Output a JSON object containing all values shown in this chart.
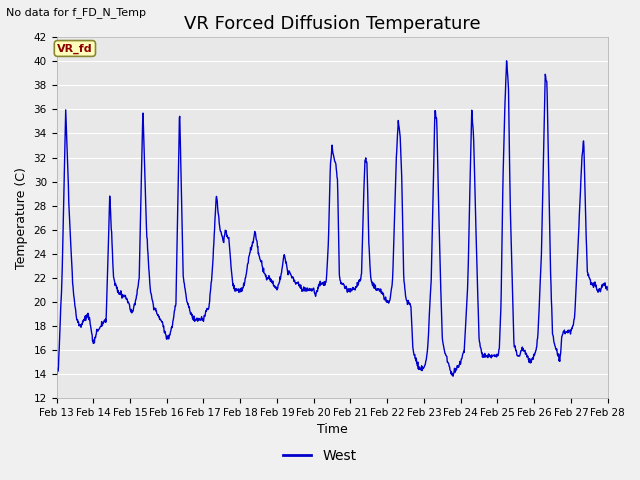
{
  "title": "VR Forced Diffusion Temperature",
  "ylabel": "Temperature (C)",
  "xlabel": "Time",
  "no_data_text": "No data for f_FD_N_Temp",
  "annotation_text": "VR_fd",
  "legend_label": "West",
  "ylim": [
    12,
    42
  ],
  "yticks": [
    12,
    14,
    16,
    18,
    20,
    22,
    24,
    26,
    28,
    30,
    32,
    34,
    36,
    38,
    40,
    42
  ],
  "line_color": "#0000cc",
  "plot_bg_color": "#e8e8e8",
  "fig_bg_color": "#f0f0f0",
  "grid_color": "#ffffff",
  "title_fontsize": 13,
  "ylabel_fontsize": 9,
  "xlabel_fontsize": 9,
  "tick_fontsize": 7.5,
  "annot_fontsize": 8,
  "nodata_fontsize": 8,
  "legend_fontsize": 10,
  "line_width": 1.0,
  "key_points": [
    [
      0.0,
      14.0
    ],
    [
      0.05,
      14.5
    ],
    [
      0.15,
      22
    ],
    [
      0.25,
      36
    ],
    [
      0.35,
      27
    ],
    [
      0.45,
      21
    ],
    [
      0.55,
      18.5
    ],
    [
      0.65,
      18
    ],
    [
      0.75,
      18.5
    ],
    [
      0.85,
      19
    ],
    [
      0.9,
      18.5
    ],
    [
      1.0,
      16.5
    ],
    [
      1.05,
      17
    ],
    [
      1.1,
      17.5
    ],
    [
      1.2,
      18
    ],
    [
      1.35,
      18.5
    ],
    [
      1.45,
      29
    ],
    [
      1.55,
      22
    ],
    [
      1.65,
      21
    ],
    [
      1.75,
      20.5
    ],
    [
      1.85,
      20.5
    ],
    [
      1.95,
      20
    ],
    [
      2.0,
      19.5
    ],
    [
      2.05,
      19
    ],
    [
      2.15,
      20
    ],
    [
      2.25,
      22
    ],
    [
      2.35,
      36
    ],
    [
      2.45,
      26
    ],
    [
      2.55,
      21
    ],
    [
      2.65,
      19.5
    ],
    [
      2.75,
      19
    ],
    [
      2.85,
      18.5
    ],
    [
      2.95,
      17.5
    ],
    [
      3.0,
      17
    ],
    [
      3.05,
      17
    ],
    [
      3.15,
      18
    ],
    [
      3.25,
      20
    ],
    [
      3.35,
      36
    ],
    [
      3.45,
      22
    ],
    [
      3.55,
      20
    ],
    [
      3.65,
      19
    ],
    [
      3.75,
      18.5
    ],
    [
      3.85,
      18.5
    ],
    [
      3.95,
      18.5
    ],
    [
      4.0,
      18.5
    ],
    [
      4.05,
      19
    ],
    [
      4.15,
      19.5
    ],
    [
      4.25,
      23
    ],
    [
      4.35,
      29
    ],
    [
      4.45,
      26
    ],
    [
      4.5,
      25.5
    ],
    [
      4.55,
      25
    ],
    [
      4.6,
      26
    ],
    [
      4.65,
      25.5
    ],
    [
      4.7,
      25
    ],
    [
      4.75,
      23
    ],
    [
      4.8,
      21.5
    ],
    [
      4.85,
      21
    ],
    [
      4.9,
      21
    ],
    [
      4.95,
      21
    ],
    [
      5.0,
      21
    ],
    [
      5.05,
      21
    ],
    [
      5.15,
      22
    ],
    [
      5.25,
      24
    ],
    [
      5.35,
      25
    ],
    [
      5.4,
      26
    ],
    [
      5.45,
      25
    ],
    [
      5.5,
      24
    ],
    [
      5.6,
      23
    ],
    [
      5.7,
      22
    ],
    [
      5.8,
      22
    ],
    [
      5.9,
      21.5
    ],
    [
      6.0,
      21
    ],
    [
      6.05,
      21.5
    ],
    [
      6.1,
      22
    ],
    [
      6.2,
      24
    ],
    [
      6.3,
      22.5
    ],
    [
      6.35,
      22.5
    ],
    [
      6.4,
      22
    ],
    [
      6.45,
      22
    ],
    [
      6.5,
      21.5
    ],
    [
      6.6,
      21.5
    ],
    [
      6.7,
      21
    ],
    [
      6.8,
      21
    ],
    [
      6.9,
      21
    ],
    [
      7.0,
      21
    ],
    [
      7.05,
      20.5
    ],
    [
      7.1,
      21
    ],
    [
      7.15,
      21.5
    ],
    [
      7.2,
      21.5
    ],
    [
      7.25,
      21.5
    ],
    [
      7.3,
      21.5
    ],
    [
      7.35,
      22
    ],
    [
      7.4,
      25
    ],
    [
      7.45,
      31
    ],
    [
      7.5,
      33
    ],
    [
      7.55,
      32
    ],
    [
      7.6,
      31.5
    ],
    [
      7.65,
      30
    ],
    [
      7.7,
      22
    ],
    [
      7.75,
      21.5
    ],
    [
      7.8,
      21.5
    ],
    [
      7.9,
      21
    ],
    [
      8.0,
      21
    ],
    [
      8.05,
      21
    ],
    [
      8.1,
      21
    ],
    [
      8.2,
      21.5
    ],
    [
      8.3,
      22
    ],
    [
      8.35,
      28
    ],
    [
      8.4,
      32
    ],
    [
      8.45,
      31.5
    ],
    [
      8.5,
      25
    ],
    [
      8.55,
      22
    ],
    [
      8.6,
      21.5
    ],
    [
      8.7,
      21
    ],
    [
      8.8,
      21
    ],
    [
      8.9,
      20.5
    ],
    [
      9.0,
      20
    ],
    [
      9.05,
      20
    ],
    [
      9.1,
      20.5
    ],
    [
      9.15,
      22
    ],
    [
      9.25,
      32
    ],
    [
      9.3,
      35
    ],
    [
      9.35,
      34
    ],
    [
      9.4,
      30
    ],
    [
      9.45,
      22
    ],
    [
      9.5,
      20.5
    ],
    [
      9.55,
      20
    ],
    [
      9.6,
      20
    ],
    [
      9.65,
      19.5
    ],
    [
      9.7,
      16
    ],
    [
      9.75,
      15.5
    ],
    [
      9.8,
      15
    ],
    [
      9.85,
      14.5
    ],
    [
      9.9,
      14.5
    ],
    [
      9.95,
      14.5
    ],
    [
      10.0,
      14.5
    ],
    [
      10.05,
      15
    ],
    [
      10.1,
      16
    ],
    [
      10.2,
      22
    ],
    [
      10.3,
      36
    ],
    [
      10.35,
      35
    ],
    [
      10.4,
      28
    ],
    [
      10.45,
      22
    ],
    [
      10.5,
      17
    ],
    [
      10.55,
      16
    ],
    [
      10.6,
      15.5
    ],
    [
      10.65,
      15
    ],
    [
      10.7,
      14.5
    ],
    [
      10.75,
      14
    ],
    [
      10.8,
      14
    ],
    [
      10.9,
      14.5
    ],
    [
      11.0,
      15
    ],
    [
      11.05,
      15.5
    ],
    [
      11.1,
      16
    ],
    [
      11.2,
      22
    ],
    [
      11.3,
      36
    ],
    [
      11.35,
      34
    ],
    [
      11.4,
      28
    ],
    [
      11.45,
      22
    ],
    [
      11.5,
      17
    ],
    [
      11.55,
      16
    ],
    [
      11.6,
      15.5
    ],
    [
      11.65,
      15.5
    ],
    [
      11.7,
      15.5
    ],
    [
      11.8,
      15.5
    ],
    [
      11.9,
      15.5
    ],
    [
      12.0,
      15.5
    ],
    [
      12.05,
      16
    ],
    [
      12.1,
      20
    ],
    [
      12.15,
      30
    ],
    [
      12.2,
      36
    ],
    [
      12.25,
      40
    ],
    [
      12.3,
      38
    ],
    [
      12.35,
      28
    ],
    [
      12.4,
      22
    ],
    [
      12.45,
      16.5
    ],
    [
      12.5,
      16
    ],
    [
      12.55,
      15.5
    ],
    [
      12.6,
      15.5
    ],
    [
      12.65,
      16
    ],
    [
      12.7,
      16
    ],
    [
      12.8,
      15.5
    ],
    [
      12.9,
      15
    ],
    [
      13.0,
      15.5
    ],
    [
      13.05,
      16
    ],
    [
      13.1,
      17
    ],
    [
      13.2,
      24
    ],
    [
      13.3,
      39
    ],
    [
      13.35,
      38
    ],
    [
      13.4,
      30
    ],
    [
      13.45,
      22
    ],
    [
      13.5,
      17.5
    ],
    [
      13.55,
      16.5
    ],
    [
      13.6,
      16
    ],
    [
      13.65,
      15.5
    ],
    [
      13.7,
      15
    ],
    [
      13.75,
      17
    ],
    [
      13.8,
      17.5
    ],
    [
      13.9,
      17.5
    ],
    [
      14.0,
      17.5
    ],
    [
      14.05,
      18
    ],
    [
      14.1,
      18.5
    ],
    [
      14.2,
      25
    ],
    [
      14.3,
      32
    ],
    [
      14.35,
      33.5
    ],
    [
      14.4,
      27
    ],
    [
      14.45,
      22.5
    ],
    [
      14.5,
      22
    ],
    [
      14.55,
      21.5
    ],
    [
      14.6,
      21.5
    ],
    [
      14.65,
      21.5
    ],
    [
      14.7,
      21
    ],
    [
      14.8,
      21
    ],
    [
      14.9,
      21.5
    ],
    [
      15.0,
      21
    ]
  ]
}
